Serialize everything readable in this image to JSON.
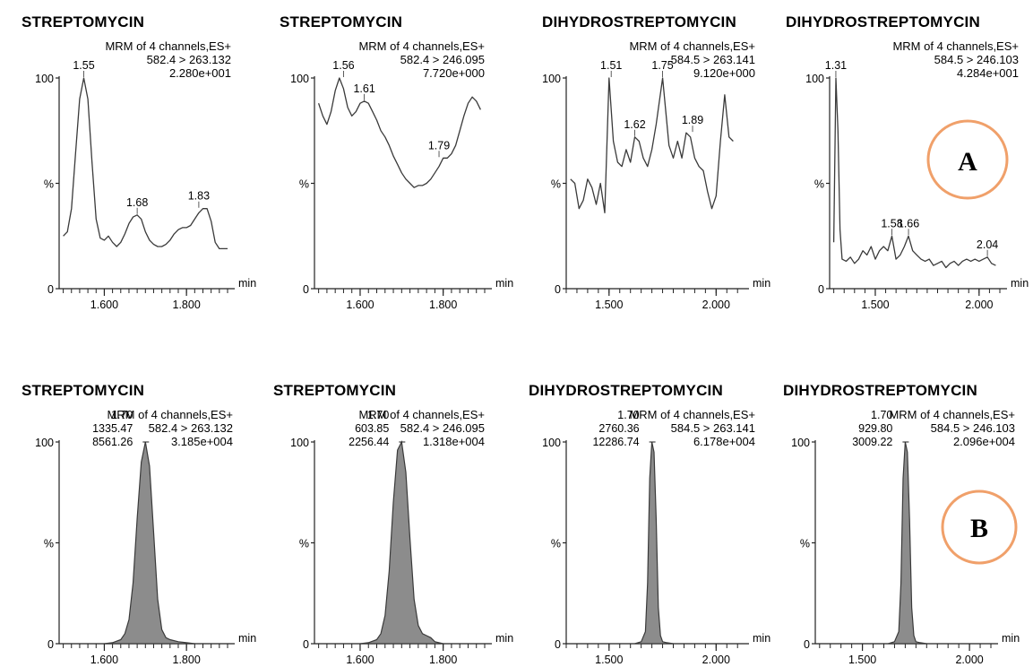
{
  "badges": {
    "A": "A",
    "B": "B"
  },
  "colors": {
    "trace": "#3a3a3a",
    "fill": "#8c8c8c",
    "badge_stroke": "#f0a06a",
    "text": "#111111"
  },
  "chart_data": [
    {
      "type": "line",
      "id": "A1",
      "title": "STREPTOMYCIN",
      "header": [
        "MRM of 4 channels,ES+",
        "582.4 > 263.132",
        "2.280e+001"
      ],
      "xlabel": "min",
      "xlim": [
        1.49,
        1.9
      ],
      "x_ticks": [
        {
          "v": 1.6,
          "label": "1.600"
        },
        {
          "v": 1.8,
          "label": "1.800"
        }
      ],
      "ylim": [
        0,
        100
      ],
      "y_ticks": [
        "0",
        "%",
        "100"
      ],
      "x": [
        1.5,
        1.51,
        1.52,
        1.53,
        1.54,
        1.55,
        1.56,
        1.57,
        1.58,
        1.59,
        1.6,
        1.61,
        1.62,
        1.63,
        1.64,
        1.65,
        1.66,
        1.67,
        1.68,
        1.69,
        1.7,
        1.71,
        1.72,
        1.73,
        1.74,
        1.75,
        1.76,
        1.77,
        1.78,
        1.79,
        1.8,
        1.81,
        1.82,
        1.83,
        1.84,
        1.85,
        1.86,
        1.87,
        1.88,
        1.89,
        1.9
      ],
      "y": [
        25,
        27,
        38,
        64,
        90,
        100,
        90,
        60,
        33,
        24,
        23,
        25,
        22,
        20,
        22,
        26,
        31,
        34,
        35,
        33,
        27,
        23,
        21,
        20,
        20,
        21,
        23,
        26,
        28,
        29,
        29,
        30,
        33,
        36,
        38,
        38,
        32,
        22,
        19,
        19,
        19
      ],
      "peak_labels": [
        {
          "x": 1.55,
          "y": 100,
          "text": "1.55"
        },
        {
          "x": 1.68,
          "y": 35,
          "text": "1.68"
        },
        {
          "x": 1.83,
          "y": 38,
          "text": "1.83"
        }
      ]
    },
    {
      "type": "line",
      "id": "A2",
      "title": "STREPTOMYCIN",
      "header": [
        "MRM of 4 channels,ES+",
        "582.4 > 246.095",
        "7.720e+000"
      ],
      "xlabel": "min",
      "xlim": [
        1.49,
        1.9
      ],
      "x_ticks": [
        {
          "v": 1.6,
          "label": "1.600"
        },
        {
          "v": 1.8,
          "label": "1.800"
        }
      ],
      "ylim": [
        0,
        100
      ],
      "y_ticks": [
        "0",
        "%",
        "100"
      ],
      "x": [
        1.5,
        1.51,
        1.52,
        1.53,
        1.54,
        1.55,
        1.56,
        1.57,
        1.58,
        1.59,
        1.6,
        1.61,
        1.62,
        1.63,
        1.64,
        1.65,
        1.66,
        1.67,
        1.68,
        1.69,
        1.7,
        1.71,
        1.72,
        1.73,
        1.74,
        1.75,
        1.76,
        1.77,
        1.78,
        1.79,
        1.8,
        1.81,
        1.82,
        1.83,
        1.84,
        1.85,
        1.86,
        1.87,
        1.88,
        1.89
      ],
      "y": [
        88,
        82,
        78,
        84,
        94,
        100,
        95,
        86,
        82,
        84,
        88,
        89,
        88,
        84,
        80,
        75,
        72,
        68,
        63,
        59,
        55,
        52,
        50,
        48,
        49,
        49,
        50,
        52,
        55,
        58,
        62,
        62,
        64,
        68,
        75,
        82,
        88,
        91,
        89,
        85
      ],
      "peak_labels": [
        {
          "x": 1.56,
          "y": 100,
          "text": "1.56"
        },
        {
          "x": 1.61,
          "y": 89,
          "text": "1.61"
        },
        {
          "x": 1.79,
          "y": 62,
          "text": "1.79"
        }
      ]
    },
    {
      "type": "line",
      "id": "A3",
      "title": "DIHYDROSTREPTOMYCIN",
      "header": [
        "MRM of 4 channels,ES+",
        "584.5 > 263.141",
        "9.120e+000"
      ],
      "xlabel": "min",
      "xlim": [
        1.3,
        2.12
      ],
      "x_ticks": [
        {
          "v": 1.5,
          "label": "1.500"
        },
        {
          "v": 2.0,
          "label": "2.000"
        }
      ],
      "ylim": [
        0,
        100
      ],
      "y_ticks": [
        "0",
        "%",
        "100"
      ],
      "x": [
        1.32,
        1.34,
        1.36,
        1.38,
        1.4,
        1.42,
        1.44,
        1.46,
        1.48,
        1.5,
        1.52,
        1.54,
        1.56,
        1.58,
        1.6,
        1.62,
        1.64,
        1.66,
        1.68,
        1.7,
        1.72,
        1.75,
        1.78,
        1.8,
        1.82,
        1.84,
        1.86,
        1.88,
        1.9,
        1.92,
        1.94,
        1.96,
        1.98,
        2.0,
        2.02,
        2.04,
        2.06,
        2.08
      ],
      "y": [
        52,
        50,
        38,
        42,
        52,
        48,
        40,
        50,
        36,
        100,
        70,
        60,
        58,
        66,
        60,
        72,
        70,
        62,
        58,
        66,
        78,
        100,
        68,
        62,
        70,
        62,
        74,
        72,
        62,
        58,
        56,
        46,
        38,
        44,
        70,
        92,
        72,
        70
      ],
      "peak_labels": [
        {
          "x": 1.51,
          "y": 100,
          "text": "1.51"
        },
        {
          "x": 1.62,
          "y": 72,
          "text": "1.62"
        },
        {
          "x": 1.75,
          "y": 100,
          "text": "1.75"
        },
        {
          "x": 1.89,
          "y": 74,
          "text": "1.89"
        }
      ]
    },
    {
      "type": "line",
      "id": "A4",
      "title": "DIHYDROSTREPTOMYCIN",
      "header": [
        "MRM of 4 channels,ES+",
        "584.5 > 246.103",
        "4.284e+001"
      ],
      "xlabel": "min",
      "xlim": [
        1.28,
        2.1
      ],
      "x_ticks": [
        {
          "v": 1.5,
          "label": "1.500"
        },
        {
          "v": 2.0,
          "label": "2.000"
        }
      ],
      "ylim": [
        0,
        100
      ],
      "y_ticks": [
        "0",
        "%",
        "100"
      ],
      "x": [
        1.3,
        1.31,
        1.32,
        1.33,
        1.34,
        1.36,
        1.38,
        1.4,
        1.42,
        1.44,
        1.46,
        1.48,
        1.5,
        1.52,
        1.54,
        1.56,
        1.58,
        1.6,
        1.62,
        1.64,
        1.66,
        1.68,
        1.7,
        1.72,
        1.74,
        1.76,
        1.78,
        1.8,
        1.82,
        1.84,
        1.86,
        1.88,
        1.9,
        1.92,
        1.94,
        1.96,
        1.98,
        2.0,
        2.02,
        2.04,
        2.06,
        2.08
      ],
      "y": [
        22,
        100,
        75,
        28,
        14,
        13,
        15,
        12,
        14,
        18,
        16,
        20,
        14,
        18,
        20,
        18,
        25,
        14,
        16,
        20,
        25,
        18,
        16,
        14,
        13,
        14,
        11,
        12,
        13,
        10,
        12,
        13,
        11,
        13,
        14,
        13,
        14,
        13,
        14,
        15,
        12,
        11
      ],
      "peak_labels": [
        {
          "x": 1.31,
          "y": 100,
          "text": "1.31"
        },
        {
          "x": 1.58,
          "y": 25,
          "text": "1.58"
        },
        {
          "x": 1.66,
          "y": 25,
          "text": "1.66"
        },
        {
          "x": 2.04,
          "y": 15,
          "text": "2.04"
        }
      ]
    },
    {
      "type": "area",
      "id": "B1",
      "title": "STREPTOMYCIN",
      "header": [
        "MRM of 4 channels,ES+",
        "582.4 > 263.132",
        "3.185e+004"
      ],
      "area_labels": [
        "1.70",
        "1335.47",
        "8561.26"
      ],
      "xlabel": "min",
      "xlim": [
        1.49,
        1.9
      ],
      "x_ticks": [
        {
          "v": 1.6,
          "label": "1.600"
        },
        {
          "v": 1.8,
          "label": "1.800"
        }
      ],
      "ylim": [
        0,
        100
      ],
      "y_ticks": [
        "0",
        "%",
        "100"
      ],
      "x": [
        1.6,
        1.62,
        1.64,
        1.65,
        1.66,
        1.67,
        1.68,
        1.69,
        1.7,
        1.71,
        1.72,
        1.73,
        1.74,
        1.75,
        1.76,
        1.78,
        1.8,
        1.82
      ],
      "y": [
        0,
        0.5,
        2,
        5,
        12,
        30,
        62,
        90,
        100,
        88,
        55,
        22,
        7,
        3,
        2,
        1,
        0.5,
        0
      ]
    },
    {
      "type": "area",
      "id": "B2",
      "title": "STREPTOMYCIN",
      "header": [
        "MRM of 4 channels,ES+",
        "582.4 > 246.095",
        "1.318e+004"
      ],
      "area_labels": [
        "1.70",
        "603.85",
        "2256.44"
      ],
      "xlabel": "min",
      "xlim": [
        1.49,
        1.9
      ],
      "x_ticks": [
        {
          "v": 1.6,
          "label": "1.600"
        },
        {
          "v": 1.8,
          "label": "1.800"
        }
      ],
      "ylim": [
        0,
        100
      ],
      "y_ticks": [
        "0",
        "%",
        "100"
      ],
      "x": [
        1.6,
        1.62,
        1.64,
        1.65,
        1.66,
        1.67,
        1.68,
        1.69,
        1.7,
        1.71,
        1.72,
        1.73,
        1.74,
        1.75,
        1.76,
        1.77,
        1.78,
        1.8
      ],
      "y": [
        0,
        0.5,
        2,
        5,
        14,
        36,
        70,
        96,
        100,
        85,
        52,
        22,
        9,
        5,
        4,
        3,
        1,
        0
      ]
    },
    {
      "type": "area",
      "id": "B3",
      "title": "DIHYDROSTREPTOMYCIN",
      "header": [
        "MRM of 4 channels,ES+",
        "584.5 > 263.141",
        "6.178e+004"
      ],
      "area_labels": [
        "1.70",
        "2760.36",
        "12286.74"
      ],
      "xlabel": "min",
      "xlim": [
        1.3,
        2.12
      ],
      "x_ticks": [
        {
          "v": 1.5,
          "label": "1.500"
        },
        {
          "v": 2.0,
          "label": "2.000"
        }
      ],
      "ylim": [
        0,
        100
      ],
      "y_ticks": [
        "0",
        "%",
        "100"
      ],
      "x": [
        1.62,
        1.65,
        1.67,
        1.68,
        1.69,
        1.7,
        1.71,
        1.72,
        1.73,
        1.74,
        1.75,
        1.77,
        1.8
      ],
      "y": [
        0,
        1,
        6,
        30,
        82,
        100,
        95,
        62,
        18,
        4,
        1,
        0.5,
        0
      ]
    },
    {
      "type": "area",
      "id": "B4",
      "title": "DIHYDROSTREPTOMYCIN",
      "header": [
        "MRM of 4 channels,ES+",
        "584.5 > 246.103",
        "2.096e+004"
      ],
      "area_labels": [
        "1.70",
        "929.80",
        "3009.22"
      ],
      "xlabel": "min",
      "xlim": [
        1.28,
        2.1
      ],
      "x_ticks": [
        {
          "v": 1.5,
          "label": "1.500"
        },
        {
          "v": 2.0,
          "label": "2.000"
        }
      ],
      "ylim": [
        0,
        100
      ],
      "y_ticks": [
        "0",
        "%",
        "100"
      ],
      "x": [
        1.62,
        1.65,
        1.67,
        1.68,
        1.69,
        1.7,
        1.71,
        1.72,
        1.73,
        1.74,
        1.75,
        1.77,
        1.8
      ],
      "y": [
        0,
        1,
        6,
        30,
        82,
        100,
        95,
        62,
        18,
        4,
        1,
        0.5,
        0
      ]
    }
  ]
}
